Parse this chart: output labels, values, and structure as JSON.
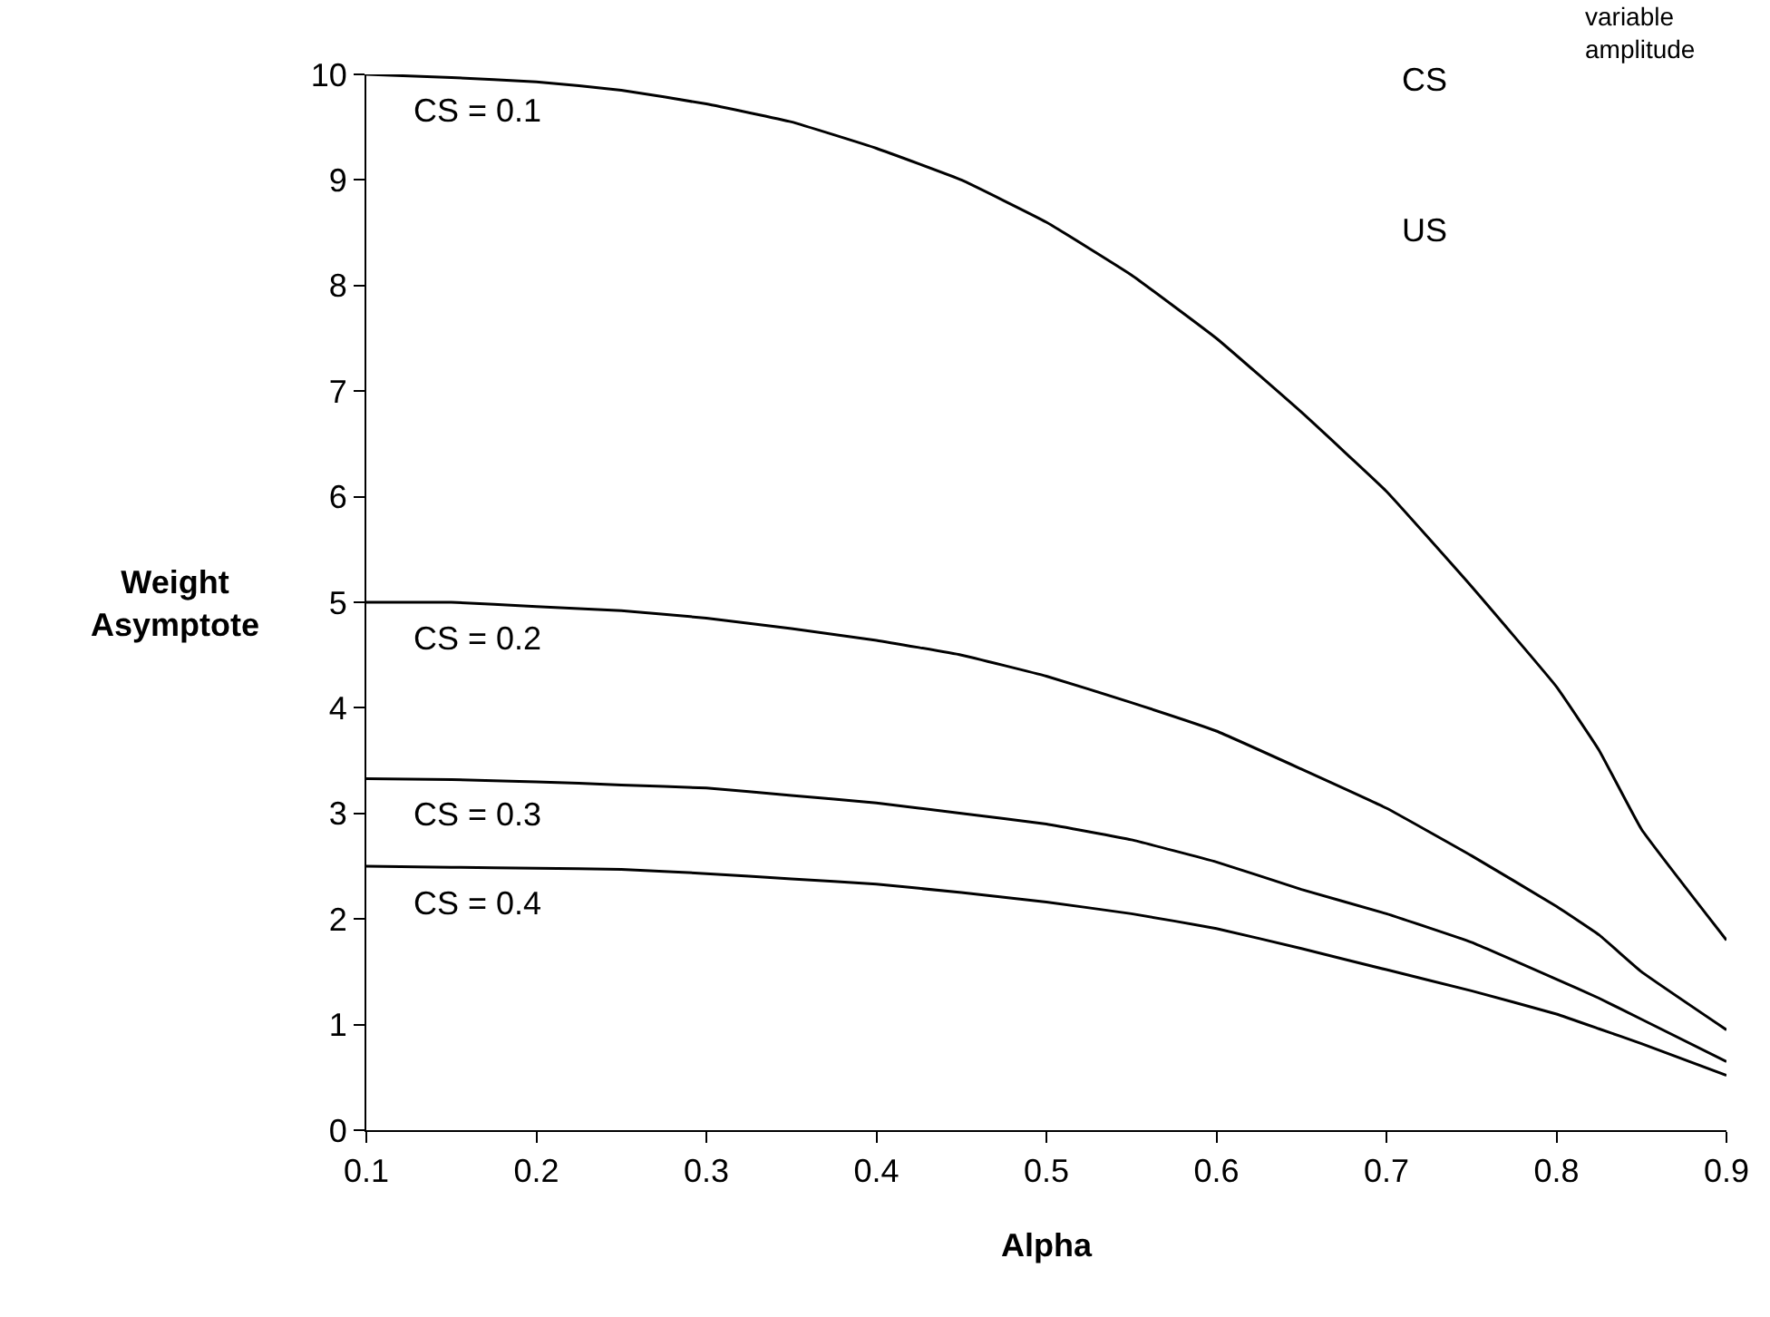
{
  "chart_data": {
    "type": "line",
    "xlabel": "Alpha",
    "ylabel": "Weight\nAsymptote",
    "x": [
      0.1,
      0.15,
      0.2,
      0.25,
      0.3,
      0.35,
      0.4,
      0.45,
      0.5,
      0.55,
      0.6,
      0.65,
      0.7,
      0.75,
      0.8,
      0.825,
      0.85,
      0.9
    ],
    "series": [
      {
        "name": "CS = 0.1",
        "color": "#000000",
        "values": [
          10.0,
          9.97,
          9.93,
          9.85,
          9.72,
          9.55,
          9.3,
          9.0,
          8.6,
          8.1,
          7.5,
          6.8,
          6.05,
          5.15,
          4.2,
          3.6,
          2.85,
          1.8
        ]
      },
      {
        "name": "CS = 0.2",
        "color": "#000000",
        "values": [
          5.0,
          5.0,
          4.96,
          4.92,
          4.85,
          4.75,
          4.64,
          4.5,
          4.3,
          4.05,
          3.78,
          3.42,
          3.05,
          2.6,
          2.12,
          1.85,
          1.5,
          0.95
        ]
      },
      {
        "name": "CS = 0.3",
        "color": "#000000",
        "values": [
          3.33,
          3.32,
          3.3,
          3.27,
          3.24,
          3.17,
          3.1,
          3.0,
          2.9,
          2.75,
          2.54,
          2.28,
          2.05,
          1.78,
          1.43,
          1.25,
          1.05,
          0.65
        ]
      },
      {
        "name": "CS = 0.4",
        "color": "#000000",
        "values": [
          2.5,
          2.49,
          2.48,
          2.47,
          2.43,
          2.38,
          2.33,
          2.25,
          2.16,
          2.05,
          1.91,
          1.72,
          1.52,
          1.32,
          1.1,
          0.96,
          0.82,
          0.52
        ]
      }
    ],
    "xlim": [
      0.1,
      0.9
    ],
    "xticks": [
      0.1,
      0.2,
      0.3,
      0.4,
      0.5,
      0.6,
      0.7,
      0.8,
      0.9
    ],
    "ylim": [
      0,
      10
    ],
    "yticks": [
      0,
      1,
      2,
      3,
      4,
      5,
      6,
      7,
      8,
      9,
      10
    ],
    "legend": false,
    "marker": "none",
    "line_style": "solid",
    "annotations": [
      "CS",
      "variable\namplitude",
      "US"
    ]
  }
}
